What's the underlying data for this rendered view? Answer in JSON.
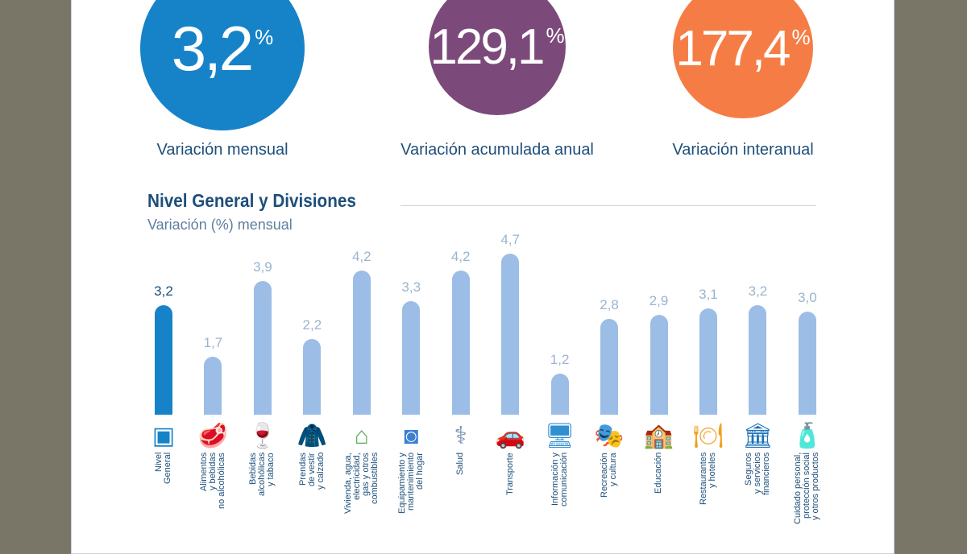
{
  "kpis": [
    {
      "value": "3,2",
      "unit": "%",
      "caption": "Variación mensual",
      "color": "#1683c8"
    },
    {
      "value": "129,1",
      "unit": "%",
      "caption": "Variación acumulada anual",
      "color": "#7b4a7a"
    },
    {
      "value": "177,4",
      "unit": "%",
      "caption": "Variación interanual",
      "color": "#f57d45"
    }
  ],
  "chart_data": {
    "type": "bar",
    "title": "Nivel General y Divisiones",
    "subtitle": "Variación (%) mensual",
    "categories": [
      "Nivel\nGeneral",
      "Alimentos\ny bebidas\nno alcohólicas",
      "Bebidas\nalcohólicas\ny tabaco",
      "Prendas\nde vestir\ny calzado",
      "Vivienda, agua,\nelectricidad,\ngas y otros\ncombustibles",
      "Equipamiento y\nmantenimiento\ndel hogar",
      "Salud",
      "Transporte",
      "Información y\ncomunicación",
      "Recreación\ny cultura",
      "Educación",
      "Restaurantes\ny hoteles",
      "Seguros\ny servicios\nfinancieros",
      "Cuidado personal,\nprotección social\ny otros productos"
    ],
    "values": [
      3.2,
      1.7,
      3.9,
      2.2,
      4.2,
      3.3,
      4.2,
      4.7,
      1.2,
      2.8,
      2.9,
      3.1,
      3.2,
      3.0
    ],
    "value_labels": [
      "3,2",
      "1,7",
      "3,9",
      "2,2",
      "4,2",
      "3,3",
      "4,2",
      "4,7",
      "1,2",
      "2,8",
      "2,9",
      "3,1",
      "3,2",
      "3,0"
    ],
    "icons": [
      "ipc-ba-logo-icon",
      "food-icon",
      "bottles-icon",
      "jacket-icon",
      "house-icon",
      "washing-machine-icon",
      "doctor-icon",
      "car-plane-icon",
      "computer-icon",
      "theater-masks-icon",
      "school-icon",
      "restaurant-icon",
      "bank-icon",
      "personal-care-icon"
    ],
    "colors": {
      "main": "#1683c8",
      "other": "#9bbde6"
    },
    "ylim": [
      0,
      4.7
    ]
  }
}
